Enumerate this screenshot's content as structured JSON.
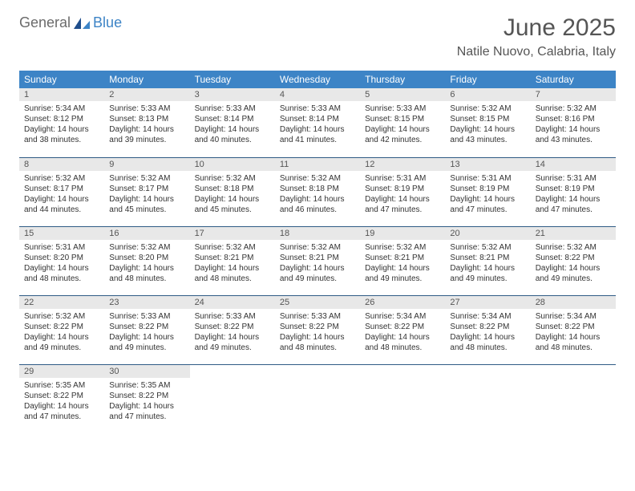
{
  "logo": {
    "word1": "General",
    "word2": "Blue"
  },
  "title": "June 2025",
  "location": "Natile Nuovo, Calabria, Italy",
  "colors": {
    "header_bg": "#3d84c6",
    "header_text": "#ffffff",
    "daynum_bg": "#e8e8e8",
    "row_border": "#2f5b85",
    "body_text": "#333333"
  },
  "weekdays": [
    "Sunday",
    "Monday",
    "Tuesday",
    "Wednesday",
    "Thursday",
    "Friday",
    "Saturday"
  ],
  "days": [
    {
      "n": 1,
      "sr": "5:34 AM",
      "ss": "8:12 PM",
      "dl": "14 hours and 38 minutes."
    },
    {
      "n": 2,
      "sr": "5:33 AM",
      "ss": "8:13 PM",
      "dl": "14 hours and 39 minutes."
    },
    {
      "n": 3,
      "sr": "5:33 AM",
      "ss": "8:14 PM",
      "dl": "14 hours and 40 minutes."
    },
    {
      "n": 4,
      "sr": "5:33 AM",
      "ss": "8:14 PM",
      "dl": "14 hours and 41 minutes."
    },
    {
      "n": 5,
      "sr": "5:33 AM",
      "ss": "8:15 PM",
      "dl": "14 hours and 42 minutes."
    },
    {
      "n": 6,
      "sr": "5:32 AM",
      "ss": "8:15 PM",
      "dl": "14 hours and 43 minutes."
    },
    {
      "n": 7,
      "sr": "5:32 AM",
      "ss": "8:16 PM",
      "dl": "14 hours and 43 minutes."
    },
    {
      "n": 8,
      "sr": "5:32 AM",
      "ss": "8:17 PM",
      "dl": "14 hours and 44 minutes."
    },
    {
      "n": 9,
      "sr": "5:32 AM",
      "ss": "8:17 PM",
      "dl": "14 hours and 45 minutes."
    },
    {
      "n": 10,
      "sr": "5:32 AM",
      "ss": "8:18 PM",
      "dl": "14 hours and 45 minutes."
    },
    {
      "n": 11,
      "sr": "5:32 AM",
      "ss": "8:18 PM",
      "dl": "14 hours and 46 minutes."
    },
    {
      "n": 12,
      "sr": "5:31 AM",
      "ss": "8:19 PM",
      "dl": "14 hours and 47 minutes."
    },
    {
      "n": 13,
      "sr": "5:31 AM",
      "ss": "8:19 PM",
      "dl": "14 hours and 47 minutes."
    },
    {
      "n": 14,
      "sr": "5:31 AM",
      "ss": "8:19 PM",
      "dl": "14 hours and 47 minutes."
    },
    {
      "n": 15,
      "sr": "5:31 AM",
      "ss": "8:20 PM",
      "dl": "14 hours and 48 minutes."
    },
    {
      "n": 16,
      "sr": "5:32 AM",
      "ss": "8:20 PM",
      "dl": "14 hours and 48 minutes."
    },
    {
      "n": 17,
      "sr": "5:32 AM",
      "ss": "8:21 PM",
      "dl": "14 hours and 48 minutes."
    },
    {
      "n": 18,
      "sr": "5:32 AM",
      "ss": "8:21 PM",
      "dl": "14 hours and 49 minutes."
    },
    {
      "n": 19,
      "sr": "5:32 AM",
      "ss": "8:21 PM",
      "dl": "14 hours and 49 minutes."
    },
    {
      "n": 20,
      "sr": "5:32 AM",
      "ss": "8:21 PM",
      "dl": "14 hours and 49 minutes."
    },
    {
      "n": 21,
      "sr": "5:32 AM",
      "ss": "8:22 PM",
      "dl": "14 hours and 49 minutes."
    },
    {
      "n": 22,
      "sr": "5:32 AM",
      "ss": "8:22 PM",
      "dl": "14 hours and 49 minutes."
    },
    {
      "n": 23,
      "sr": "5:33 AM",
      "ss": "8:22 PM",
      "dl": "14 hours and 49 minutes."
    },
    {
      "n": 24,
      "sr": "5:33 AM",
      "ss": "8:22 PM",
      "dl": "14 hours and 49 minutes."
    },
    {
      "n": 25,
      "sr": "5:33 AM",
      "ss": "8:22 PM",
      "dl": "14 hours and 48 minutes."
    },
    {
      "n": 26,
      "sr": "5:34 AM",
      "ss": "8:22 PM",
      "dl": "14 hours and 48 minutes."
    },
    {
      "n": 27,
      "sr": "5:34 AM",
      "ss": "8:22 PM",
      "dl": "14 hours and 48 minutes."
    },
    {
      "n": 28,
      "sr": "5:34 AM",
      "ss": "8:22 PM",
      "dl": "14 hours and 48 minutes."
    },
    {
      "n": 29,
      "sr": "5:35 AM",
      "ss": "8:22 PM",
      "dl": "14 hours and 47 minutes."
    },
    {
      "n": 30,
      "sr": "5:35 AM",
      "ss": "8:22 PM",
      "dl": "14 hours and 47 minutes."
    }
  ],
  "labels": {
    "sunrise": "Sunrise:",
    "sunset": "Sunset:",
    "daylight": "Daylight:"
  },
  "layout": {
    "first_weekday_index": 0,
    "total_cells": 35
  }
}
